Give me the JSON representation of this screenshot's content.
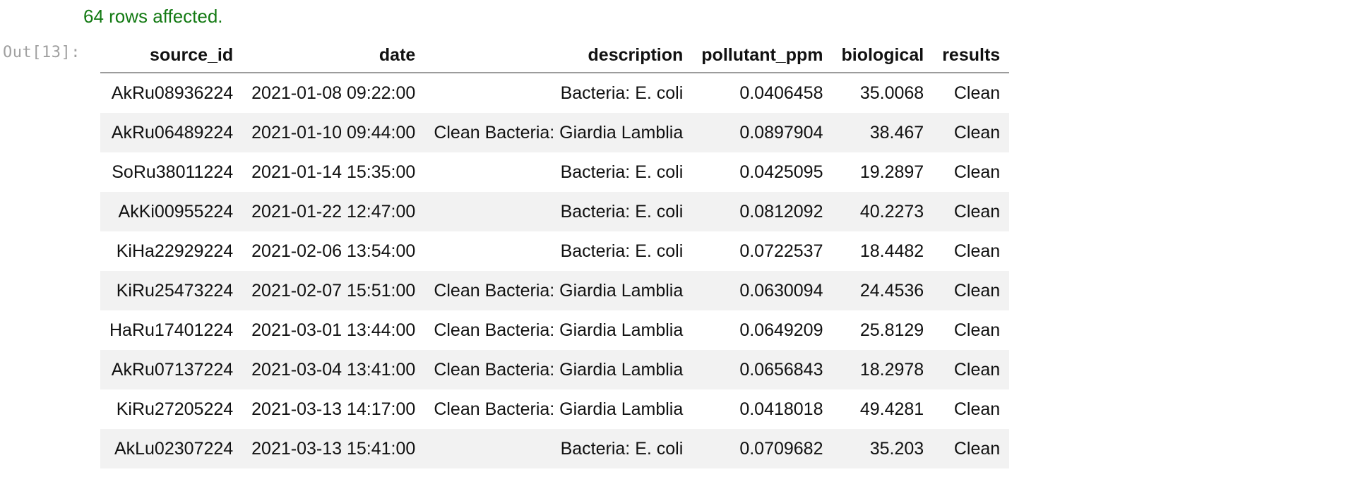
{
  "status": "64 rows affected.",
  "prompt": "Out[13]:",
  "table": {
    "columns": [
      "source_id",
      "date",
      "description",
      "pollutant_ppm",
      "biological",
      "results"
    ],
    "rows": [
      [
        "AkRu08936224",
        "2021-01-08 09:22:00",
        "Bacteria: E. coli",
        "0.0406458",
        "35.0068",
        "Clean"
      ],
      [
        "AkRu06489224",
        "2021-01-10 09:44:00",
        "Clean Bacteria: Giardia Lamblia",
        "0.0897904",
        "38.467",
        "Clean"
      ],
      [
        "SoRu38011224",
        "2021-01-14 15:35:00",
        "Bacteria: E. coli",
        "0.0425095",
        "19.2897",
        "Clean"
      ],
      [
        "AkKi00955224",
        "2021-01-22 12:47:00",
        "Bacteria: E. coli",
        "0.0812092",
        "40.2273",
        "Clean"
      ],
      [
        "KiHa22929224",
        "2021-02-06 13:54:00",
        "Bacteria: E. coli",
        "0.0722537",
        "18.4482",
        "Clean"
      ],
      [
        "KiRu25473224",
        "2021-02-07 15:51:00",
        "Clean Bacteria: Giardia Lamblia",
        "0.0630094",
        "24.4536",
        "Clean"
      ],
      [
        "HaRu17401224",
        "2021-03-01 13:44:00",
        "Clean Bacteria: Giardia Lamblia",
        "0.0649209",
        "25.8129",
        "Clean"
      ],
      [
        "AkRu07137224",
        "2021-03-04 13:41:00",
        "Clean Bacteria: Giardia Lamblia",
        "0.0656843",
        "18.2978",
        "Clean"
      ],
      [
        "KiRu27205224",
        "2021-03-13 14:17:00",
        "Clean Bacteria: Giardia Lamblia",
        "0.0418018",
        "49.4281",
        "Clean"
      ],
      [
        "AkLu02307224",
        "2021-03-13 15:41:00",
        "Bacteria: E. coli",
        "0.0709682",
        "35.203",
        "Clean"
      ]
    ]
  }
}
